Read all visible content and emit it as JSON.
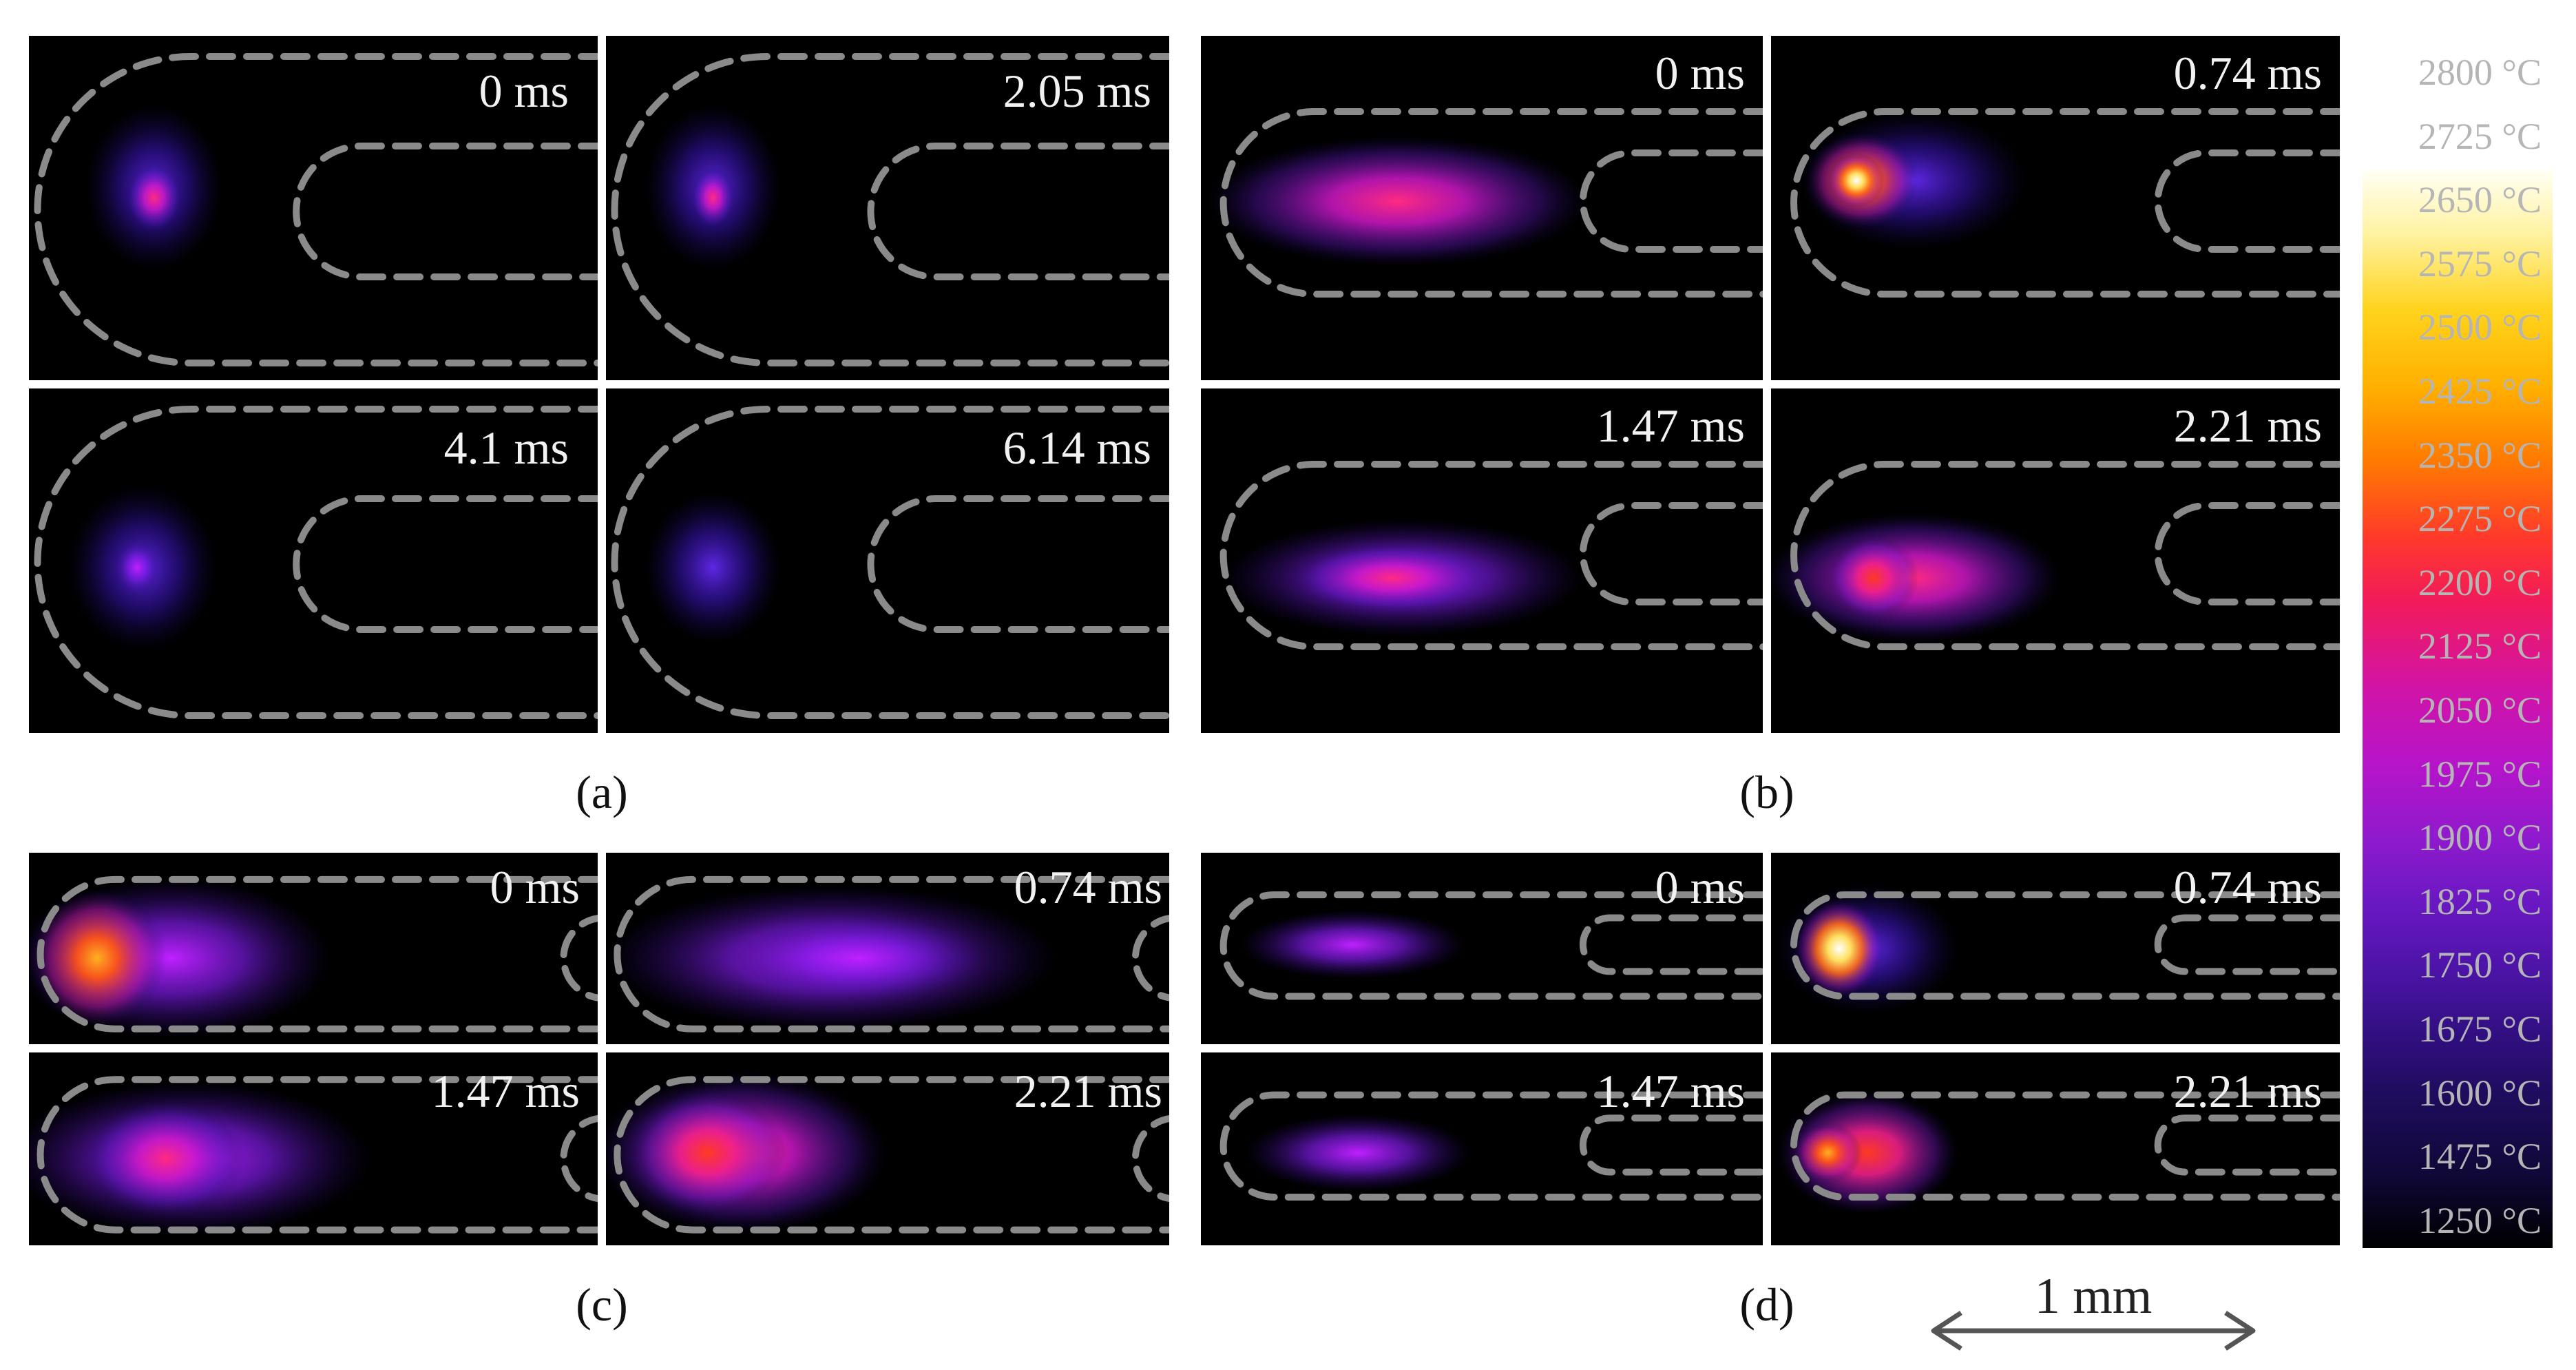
{
  "panels": {
    "a": {
      "caption": "(a)",
      "frames": [
        {
          "time": "0 ms",
          "mode": "u-bend",
          "blob": "a0"
        },
        {
          "time": "2.05 ms",
          "mode": "u-bend",
          "blob": "a1"
        },
        {
          "time": "4.1 ms",
          "mode": "u-bend",
          "blob": "a2"
        },
        {
          "time": "6.14 ms",
          "mode": "u-bend",
          "blob": "a3"
        }
      ]
    },
    "b": {
      "caption": "(b)",
      "frames": [
        {
          "time": "0 ms",
          "mode": "tube",
          "blob": "b0"
        },
        {
          "time": "0.74 ms",
          "mode": "tube",
          "blob": "b1"
        },
        {
          "time": "1.47 ms",
          "mode": "tube",
          "blob": "b2"
        },
        {
          "time": "2.21 ms",
          "mode": "tube",
          "blob": "b3"
        }
      ]
    },
    "c": {
      "caption": "(c)",
      "frames": [
        {
          "time": "0 ms",
          "mode": "channel",
          "blob": "c0"
        },
        {
          "time": "0.74 ms",
          "mode": "channel",
          "blob": "c1"
        },
        {
          "time": "1.47 ms",
          "mode": "channel",
          "blob": "c2"
        },
        {
          "time": "2.21 ms",
          "mode": "channel",
          "blob": "c3"
        }
      ]
    },
    "d": {
      "caption": "(d)",
      "frames": [
        {
          "time": "0 ms",
          "mode": "tube",
          "blob": "d0"
        },
        {
          "time": "0.74 ms",
          "mode": "tube",
          "blob": "d1"
        },
        {
          "time": "1.47 ms",
          "mode": "tube",
          "blob": "d2"
        },
        {
          "time": "2.21 ms",
          "mode": "tube",
          "blob": "d3"
        }
      ]
    }
  },
  "colorbar": {
    "ticks": [
      "2800 °C",
      "2725 °C",
      "2650 °C",
      "2575 °C",
      "2500 °C",
      "2425 °C",
      "2350 °C",
      "2275 °C",
      "2200 °C",
      "2125 °C",
      "2050 °C",
      "1975 °C",
      "1900 °C",
      "1825 °C",
      "1750 °C",
      "1675 °C",
      "1600 °C",
      "1475 °C",
      "1250 °C"
    ]
  },
  "scale_bar": {
    "label": "1 mm"
  },
  "colors": {
    "outline": "#8a8a8a",
    "background": "#000000",
    "caption": "#111111"
  }
}
